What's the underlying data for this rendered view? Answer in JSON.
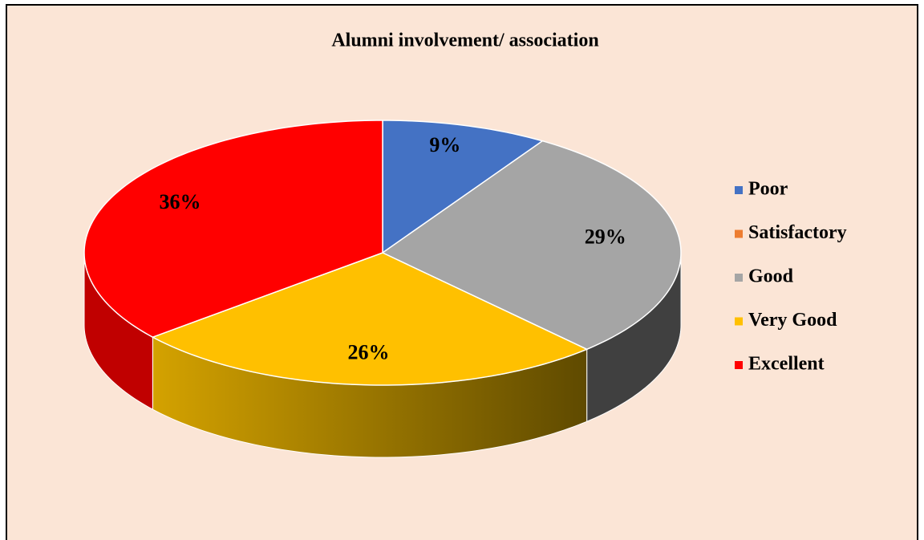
{
  "chart_data": {
    "type": "pie",
    "title": "Alumni involvement/ association",
    "categories": [
      "Poor",
      "Satisfactory",
      "Good",
      "Very Good",
      "Excellent"
    ],
    "values": [
      9,
      0,
      29,
      26,
      36
    ],
    "value_labels": [
      "9%",
      null,
      "29%",
      "26%",
      "36%"
    ],
    "colors": [
      "#4472c4",
      "#ed7d31",
      "#a5a5a5",
      "#ffc000",
      "#ff0000"
    ],
    "legend": "right"
  }
}
